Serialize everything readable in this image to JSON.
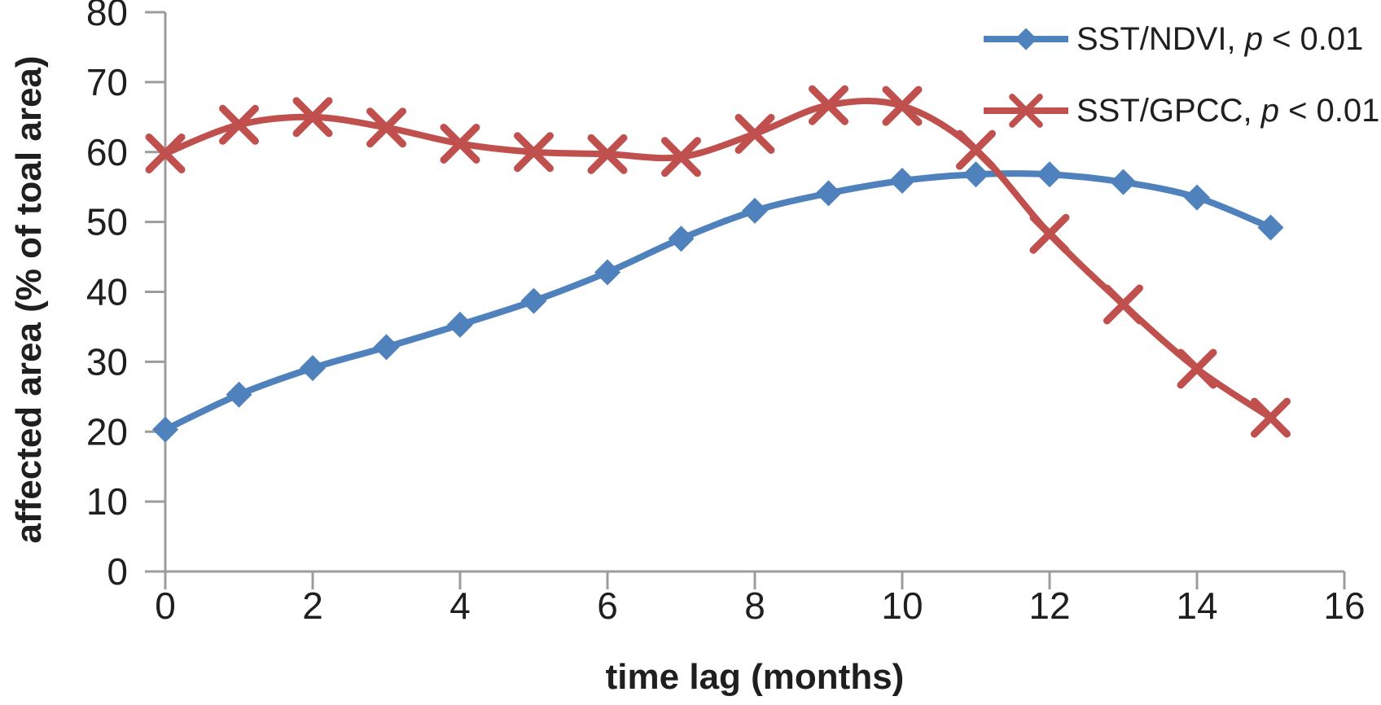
{
  "figure": {
    "background": "#ffffff",
    "text_color": "#1f1f1f",
    "axis_color": "#9c9c9c"
  },
  "chart_data": {
    "type": "line",
    "title": "",
    "xlabel": "time lag (months)",
    "ylabel": "affected area (% of toal area)",
    "xlim": [
      0,
      16
    ],
    "ylim": [
      0,
      80
    ],
    "x_ticks": [
      0,
      2,
      4,
      6,
      8,
      10,
      12,
      14,
      16
    ],
    "y_ticks": [
      0,
      10,
      20,
      30,
      40,
      50,
      60,
      70,
      80
    ],
    "grid": false,
    "legend_position": "top-right",
    "x": [
      0,
      1,
      2,
      3,
      4,
      5,
      6,
      7,
      8,
      9,
      10,
      11,
      12,
      13,
      14,
      15
    ],
    "series": [
      {
        "id": "sst-ndvi",
        "name": "SST/NDVI, p < 0.01",
        "label_parts": {
          "prefix": "SST/NDVI, ",
          "italic": "p",
          "suffix": " < 0.01"
        },
        "color": "#4f81bd",
        "marker": "diamond",
        "smooth": true,
        "values": [
          20.3,
          25.3,
          29.1,
          32.1,
          35.3,
          38.7,
          42.8,
          47.6,
          51.6,
          54.1,
          55.9,
          56.8,
          56.8,
          55.7,
          53.5,
          49.2
        ]
      },
      {
        "id": "sst-gpcc",
        "name": "SST/GPCC, p < 0.01",
        "label_parts": {
          "prefix": "SST/GPCC, ",
          "italic": "p",
          "suffix": " < 0.01"
        },
        "color": "#c0504d",
        "marker": "x",
        "smooth": true,
        "values": [
          59.8,
          63.9,
          65.0,
          63.5,
          61.2,
          60.0,
          59.7,
          59.3,
          62.6,
          66.7,
          66.6,
          60.3,
          48.3,
          38.2,
          29.0,
          22.0
        ]
      }
    ]
  }
}
